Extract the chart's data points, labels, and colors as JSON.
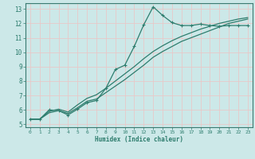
{
  "xlabel": "Humidex (Indice chaleur)",
  "bg_color": "#cce8e8",
  "grid_color": "#e8c8c8",
  "line_color": "#2e7d6e",
  "xlim": [
    -0.5,
    23.5
  ],
  "ylim": [
    4.8,
    13.4
  ],
  "xticks": [
    0,
    1,
    2,
    3,
    4,
    5,
    6,
    7,
    8,
    9,
    10,
    11,
    12,
    13,
    14,
    15,
    16,
    17,
    18,
    19,
    20,
    21,
    22,
    23
  ],
  "yticks": [
    5,
    6,
    7,
    8,
    9,
    10,
    11,
    12,
    13
  ],
  "line1_x": [
    0,
    1,
    2,
    3,
    4,
    5,
    6,
    7,
    8,
    9,
    10,
    11,
    12,
    13,
    14,
    15,
    16,
    17,
    18,
    19,
    20,
    21,
    22,
    23
  ],
  "line1_y": [
    5.35,
    5.35,
    6.0,
    5.95,
    5.65,
    6.05,
    6.5,
    6.65,
    7.5,
    8.8,
    9.1,
    10.4,
    11.9,
    13.15,
    12.55,
    12.05,
    11.85,
    11.85,
    11.95,
    11.85,
    11.8,
    11.85,
    11.85,
    11.85
  ],
  "line2_x": [
    0,
    1,
    2,
    3,
    4,
    5,
    6,
    7,
    8,
    9,
    10,
    11,
    12,
    13,
    14,
    15,
    16,
    17,
    18,
    19,
    20,
    21,
    22,
    23
  ],
  "line2_y": [
    5.35,
    5.35,
    5.9,
    6.05,
    5.85,
    6.35,
    6.8,
    7.05,
    7.5,
    8.0,
    8.5,
    9.0,
    9.55,
    10.05,
    10.45,
    10.8,
    11.1,
    11.35,
    11.6,
    11.8,
    12.0,
    12.15,
    12.3,
    12.4
  ],
  "line3_x": [
    0,
    1,
    2,
    3,
    4,
    5,
    6,
    7,
    8,
    9,
    10,
    11,
    12,
    13,
    14,
    15,
    16,
    17,
    18,
    19,
    20,
    21,
    22,
    23
  ],
  "line3_y": [
    5.35,
    5.35,
    5.8,
    5.95,
    5.75,
    6.15,
    6.6,
    6.75,
    7.2,
    7.65,
    8.1,
    8.6,
    9.1,
    9.65,
    10.05,
    10.4,
    10.75,
    11.0,
    11.25,
    11.5,
    11.75,
    12.0,
    12.15,
    12.3
  ]
}
